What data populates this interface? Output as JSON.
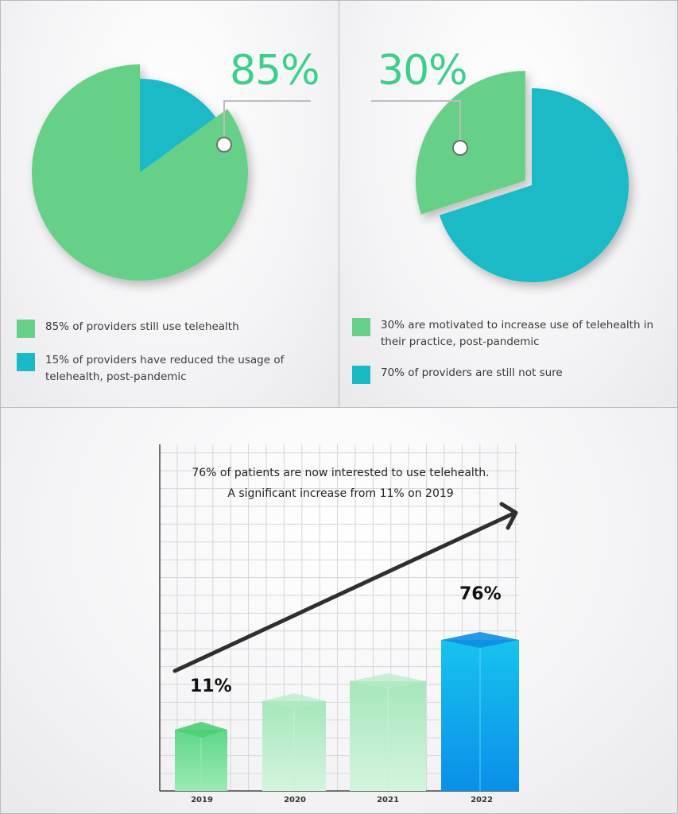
{
  "colors": {
    "green": "#66d088",
    "teal": "#1ab9c6",
    "pct_text": "#3ccf8b",
    "arrow": "#2f2f2f",
    "bar_light": "#8ee0a8",
    "bar_2022": "#12b7ec"
  },
  "chart_data": [
    {
      "type": "pie",
      "big_label": "85%",
      "slices": [
        {
          "label": "85% of providers still use telehealth",
          "value": 85,
          "color": "#66d088"
        },
        {
          "label": "15% of providers have reduced the usage of telehealth, post-pandemic",
          "value": 15,
          "color": "#1ab9c6"
        }
      ]
    },
    {
      "type": "pie",
      "big_label": "30%",
      "slices": [
        {
          "label": "30% are motivated to increase use of telehealth in their practice, post-pandemic",
          "value": 30,
          "color": "#66d088"
        },
        {
          "label": "70% of providers are still not sure",
          "value": 70,
          "color": "#1ab9c6"
        }
      ]
    },
    {
      "type": "bar",
      "title_lines": [
        "76% of patients are now interested to use telehealth.",
        "A significant increase from 11% on 2019"
      ],
      "categories": [
        "2019",
        "2020",
        "2021",
        "2022"
      ],
      "values": [
        11,
        null,
        null,
        76
      ],
      "data_labels": [
        "11%",
        "",
        "",
        "76%"
      ],
      "grid": true,
      "trend_arrow": true
    }
  ]
}
